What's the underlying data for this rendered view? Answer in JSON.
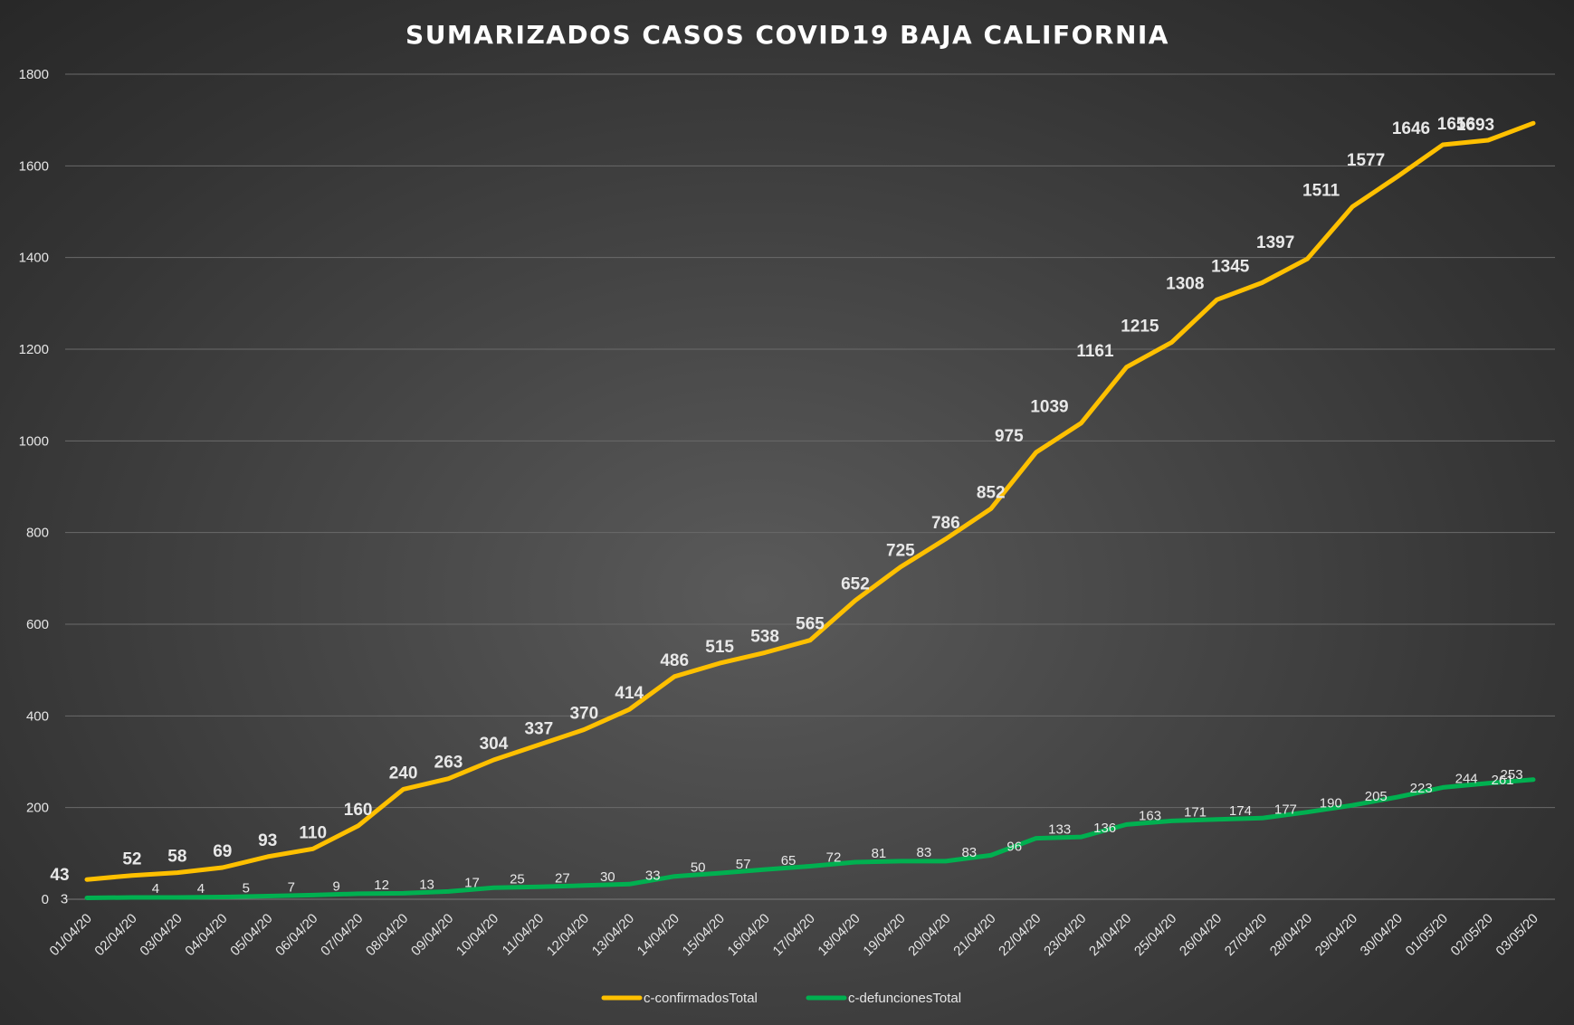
{
  "chart_data": {
    "type": "line",
    "title": "SUMARIZADOS CASOS COVID19 BAJA CALIFORNIA",
    "xlabel": "",
    "ylabel": "",
    "ylim": [
      0,
      1800
    ],
    "yticks": [
      "0",
      "200",
      "400",
      "600",
      "800",
      "1000",
      "1200",
      "1400",
      "1600",
      "1800"
    ],
    "grid": true,
    "legend_position": "bottom",
    "categories": [
      "01/04/20",
      "02/04/20",
      "03/04/20",
      "04/04/20",
      "05/04/20",
      "06/04/20",
      "07/04/20",
      "08/04/20",
      "09/04/20",
      "10/04/20",
      "11/04/20",
      "12/04/20",
      "13/04/20",
      "14/04/20",
      "15/04/20",
      "16/04/20",
      "17/04/20",
      "18/04/20",
      "19/04/20",
      "20/04/20",
      "21/04/20",
      "22/04/20",
      "23/04/20",
      "24/04/20",
      "25/04/20",
      "26/04/20",
      "27/04/20",
      "28/04/20",
      "29/04/20",
      "30/04/20",
      "01/05/20",
      "02/05/20",
      "03/05/20"
    ],
    "series": [
      {
        "name": "c-confirmadosTotal",
        "color": "#FFC000",
        "values": [
          43,
          52,
          58,
          69,
          93,
          110,
          160,
          240,
          263,
          304,
          337,
          370,
          414,
          486,
          515,
          538,
          565,
          652,
          725,
          786,
          852,
          975,
          1039,
          1161,
          1215,
          1308,
          1345,
          1397,
          1511,
          1577,
          1646,
          1656,
          1693
        ],
        "labels": [
          "43",
          "52",
          "58",
          "69",
          "93",
          "110",
          "160",
          "240",
          "263",
          "304",
          "337",
          "370",
          "414",
          "486",
          "515",
          "538",
          "565",
          "652",
          "725",
          "786",
          "852",
          "975",
          "1039",
          "1161",
          "1215",
          "1308",
          "1345",
          "1397",
          "1511",
          "1577",
          "1646",
          "1656",
          "1693"
        ]
      },
      {
        "name": "c-defuncionesTotal",
        "color": "#00B050",
        "values": [
          3,
          4,
          4,
          5,
          7,
          9,
          12,
          13,
          17,
          25,
          27,
          30,
          33,
          50,
          57,
          65,
          72,
          81,
          83,
          83,
          96,
          133,
          136,
          163,
          171,
          174,
          177,
          190,
          205,
          223,
          244,
          253,
          261
        ],
        "labels": [
          "3",
          "4",
          "4",
          "5",
          "7",
          "9",
          "12",
          "13",
          "17",
          "25",
          "27",
          "30",
          "33",
          "50",
          "57",
          "65",
          "72",
          "81",
          "83",
          "83",
          "96",
          "133",
          "136",
          "163",
          "171",
          "174",
          "177",
          "190",
          "205",
          "223",
          "244",
          "253",
          "261"
        ]
      }
    ]
  }
}
